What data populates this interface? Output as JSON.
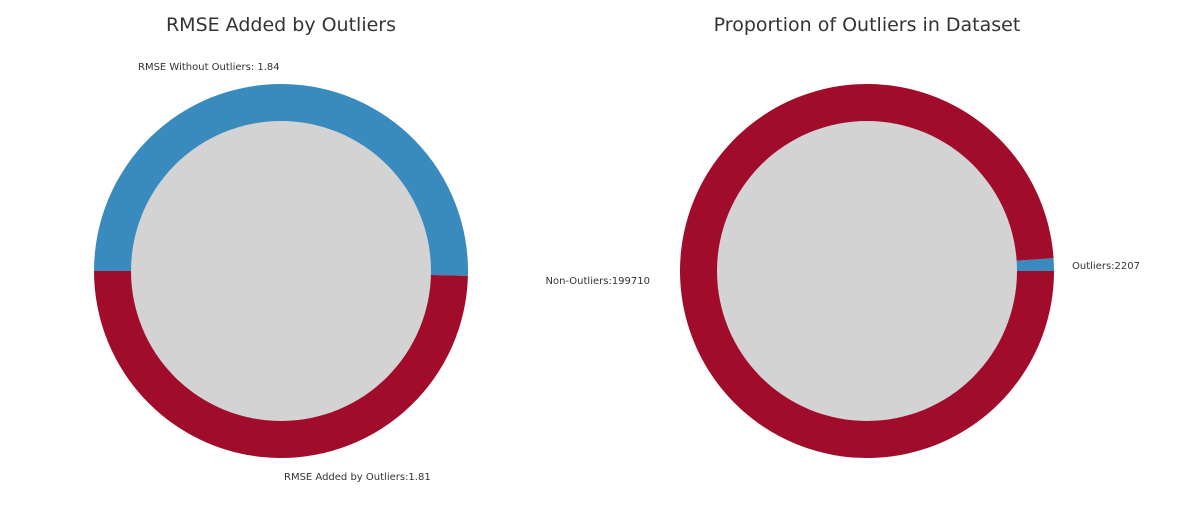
{
  "chart_data": [
    {
      "type": "pie",
      "style": "donut",
      "title": "RMSE Added by Outliers",
      "hole_color": "#d3d3d3",
      "slices": [
        {
          "label": "RMSE Without Outliers: 1.84",
          "value": 1.84,
          "color": "#3a8bbd"
        },
        {
          "label": "RMSE Added by Outliers:1.81",
          "value": 1.81,
          "color": "#a20c2b"
        }
      ]
    },
    {
      "type": "pie",
      "style": "donut",
      "title": "Proportion of Outliers in Dataset",
      "hole_color": "#d3d3d3",
      "slices": [
        {
          "label": "Outliers:2207",
          "value": 2207,
          "color": "#3a8bbd"
        },
        {
          "label": "Non-Outliers:199710",
          "value": 199710,
          "color": "#a20c2b"
        }
      ]
    }
  ]
}
